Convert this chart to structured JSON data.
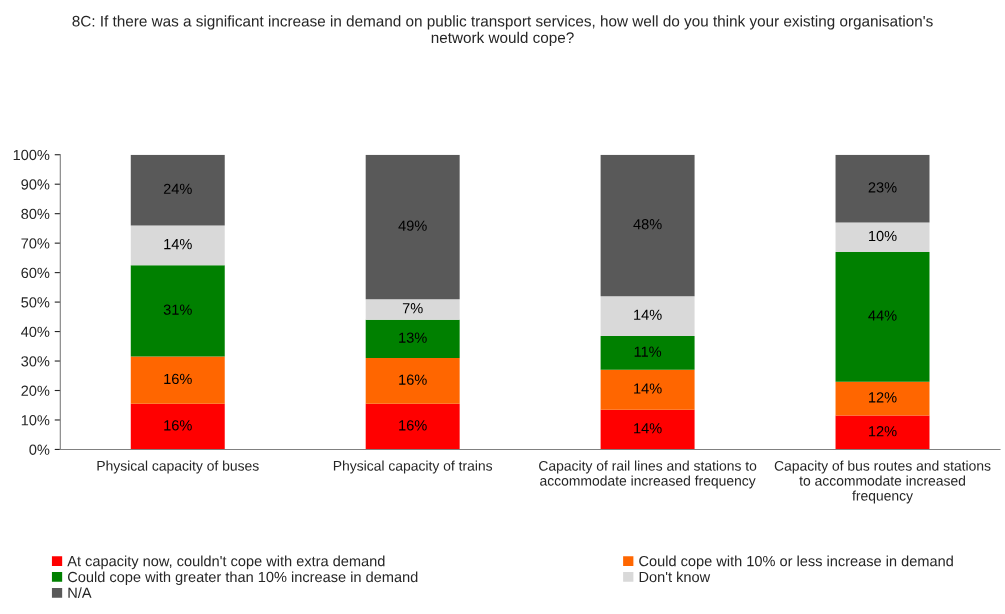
{
  "chart_data": {
    "type": "bar",
    "stacked": true,
    "title": "8C: If there was a significant increase in demand on public transport services, how well do you think your existing organisation's\nnetwork would cope?",
    "categories": [
      "Physical capacity of buses",
      "Physical capacity of trains",
      "Capacity of rail lines and stations to\naccommodate increased frequency",
      "Capacity of bus routes and stations\nto accommodate increased\nfrequency"
    ],
    "series": [
      {
        "name": "At capacity now, couldn't cope with extra demand",
        "color": "#ff0000",
        "values": [
          15.5,
          15.5,
          13.5,
          11.5
        ],
        "value_labels": [
          "16%",
          "16%",
          "14%",
          "12%"
        ]
      },
      {
        "name": "Could cope with 10% or less increase in demand",
        "color": "#ff6600",
        "values": [
          16,
          15.5,
          13.5,
          11.5
        ],
        "value_labels": [
          "16%",
          "16%",
          "14%",
          "12%"
        ]
      },
      {
        "name": "Could cope with greater than 10% increase in demand",
        "color": "#008000",
        "values": [
          31,
          13,
          11.5,
          44
        ],
        "value_labels": [
          "31%",
          "13%",
          "11%",
          "44%"
        ]
      },
      {
        "name": "Don't know",
        "color": "#d9d9d9",
        "values": [
          13.5,
          7,
          13.5,
          10
        ],
        "value_labels": [
          "14%",
          "7%",
          "14%",
          "10%"
        ]
      },
      {
        "name": "N/A",
        "color": "#595959",
        "values": [
          24,
          49,
          48,
          23
        ],
        "value_labels": [
          "24%",
          "49%",
          "48%",
          "23%"
        ]
      }
    ],
    "ylim": [
      0,
      100
    ],
    "yticks": [
      {
        "value": 0,
        "label": "0%"
      },
      {
        "value": 10,
        "label": "10%"
      },
      {
        "value": 20,
        "label": "20%"
      },
      {
        "value": 30,
        "label": "30%"
      },
      {
        "value": 40,
        "label": "40%"
      },
      {
        "value": 50,
        "label": "50%"
      },
      {
        "value": 60,
        "label": "60%"
      },
      {
        "value": 70,
        "label": "70%"
      },
      {
        "value": 80,
        "label": "80%"
      },
      {
        "value": 90,
        "label": "90%"
      },
      {
        "value": 100,
        "label": "100%"
      }
    ],
    "grid": false,
    "legend": "bottom"
  }
}
